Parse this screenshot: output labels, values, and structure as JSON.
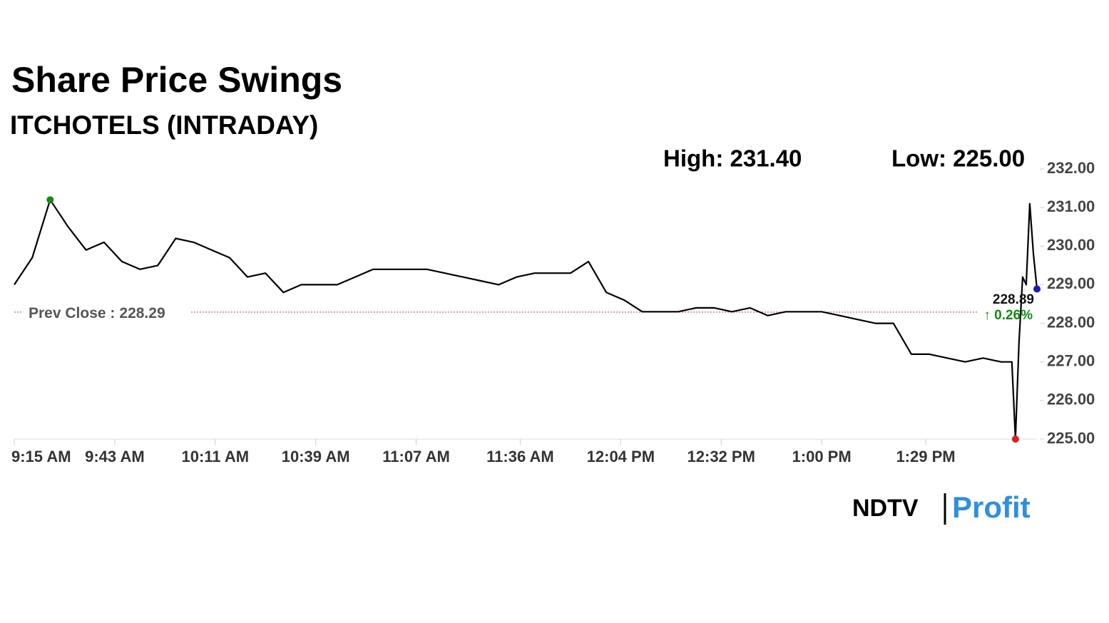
{
  "chart_data": {
    "type": "line",
    "title": "Share Price Swings",
    "subtitle": "ITCHOTELS (INTRADAY)",
    "high": {
      "value": 231.4,
      "label": "High: 231.40"
    },
    "low": {
      "value": 225.0,
      "label": "Low: 225.00"
    },
    "prev_close_label": "Prev Close :",
    "prev_close": 228.29,
    "last_price": 228.89,
    "change_pct": {
      "value": 0.26,
      "label": "↑ 0.26%"
    },
    "color": "#000000",
    "x": [
      "9:15 AM",
      "9:20 AM",
      "9:25 AM",
      "9:30 AM",
      "9:35 AM",
      "9:40 AM",
      "9:45 AM",
      "9:50 AM",
      "9:55 AM",
      "10:00 AM",
      "10:05 AM",
      "10:10 AM",
      "10:15 AM",
      "10:20 AM",
      "10:25 AM",
      "10:30 AM",
      "10:35 AM",
      "10:40 AM",
      "10:45 AM",
      "10:50 AM",
      "10:55 AM",
      "11:00 AM",
      "11:05 AM",
      "11:10 AM",
      "11:15 AM",
      "11:20 AM",
      "11:25 AM",
      "11:30 AM",
      "11:35 AM",
      "11:40 AM",
      "11:45 AM",
      "11:50 AM",
      "11:55 AM",
      "12:00 PM",
      "12:05 PM",
      "12:10 PM",
      "12:15 PM",
      "12:20 PM",
      "12:25 PM",
      "12:30 PM",
      "12:35 PM",
      "12:40 PM",
      "12:45 PM",
      "12:50 PM",
      "12:55 PM",
      "1:00 PM",
      "1:05 PM",
      "1:10 PM",
      "1:15 PM",
      "1:20 PM",
      "1:25 PM",
      "1:30 PM",
      "1:35 PM",
      "1:40 PM",
      "1:45 PM",
      "1:50 PM",
      "1:53 PM",
      "1:54 PM",
      "1:55 PM",
      "1:56 PM",
      "1:57 PM",
      "1:58 PM",
      "1:59 PM",
      "2:00 PM"
    ],
    "values": [
      229.0,
      229.7,
      231.2,
      230.5,
      229.9,
      230.1,
      229.6,
      229.4,
      229.5,
      230.2,
      230.1,
      229.9,
      229.7,
      229.2,
      229.3,
      228.8,
      229.0,
      229.0,
      229.0,
      229.2,
      229.4,
      229.4,
      229.4,
      229.4,
      229.3,
      229.2,
      229.1,
      229.0,
      229.2,
      229.3,
      229.3,
      229.3,
      229.6,
      228.8,
      228.6,
      228.3,
      228.3,
      228.3,
      228.4,
      228.4,
      228.3,
      228.4,
      228.2,
      228.3,
      228.3,
      228.3,
      228.2,
      228.1,
      228.0,
      228.0,
      227.2,
      227.2,
      227.1,
      227.0,
      227.1,
      227.0,
      227.0,
      225.0,
      227.5,
      229.2,
      229.0,
      231.1,
      229.8,
      228.89
    ],
    "xlim": [
      "9:15 AM",
      "2:00 PM"
    ],
    "xticks": [
      "9:15 AM",
      "9:43 AM",
      "10:11 AM",
      "10:39 AM",
      "11:07 AM",
      "11:36 AM",
      "12:04 PM",
      "12:32 PM",
      "1:00 PM",
      "1:29 PM"
    ],
    "ylim": [
      225,
      232
    ],
    "yticks": [
      {
        "value": 225,
        "label": "225.00"
      },
      {
        "value": 226,
        "label": "226.00"
      },
      {
        "value": 227,
        "label": "227.00"
      },
      {
        "value": 228,
        "label": "228.00"
      },
      {
        "value": 229,
        "label": "229.00"
      },
      {
        "value": 230,
        "label": "230.00"
      },
      {
        "value": 231,
        "label": "231.00"
      },
      {
        "value": 232,
        "label": "232.00"
      }
    ],
    "brand": [
      "NDTV",
      "Profit"
    ]
  }
}
